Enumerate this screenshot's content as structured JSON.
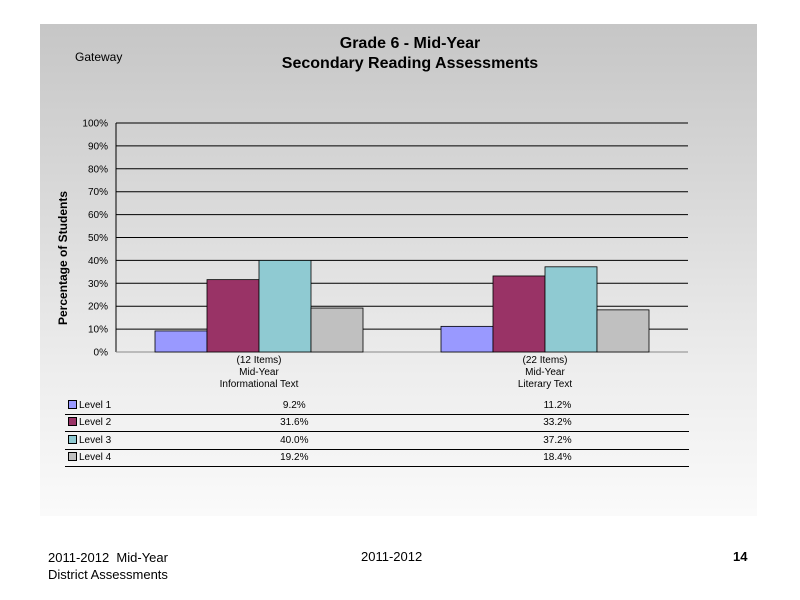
{
  "header": {
    "school": "Gateway",
    "title_line1": "Grade 6 - Mid-Year",
    "title_line2": "Secondary Reading Assessments"
  },
  "chart_data": {
    "type": "bar",
    "ylabel": "Percentage of Students",
    "ylim": [
      0,
      100
    ],
    "yticks": [
      "0%",
      "10%",
      "20%",
      "30%",
      "40%",
      "50%",
      "60%",
      "70%",
      "80%",
      "90%",
      "100%"
    ],
    "grid": true,
    "categories": [
      {
        "lines": [
          "(12 Items)",
          "Mid-Year",
          "Informational Text"
        ]
      },
      {
        "lines": [
          "(22 Items)",
          "Mid-Year",
          "Literary Text"
        ]
      }
    ],
    "series": [
      {
        "name": "Level 1",
        "color": "#9999ff",
        "values": [
          9.2,
          11.2
        ],
        "labels": [
          "9.2%",
          "11.2%"
        ]
      },
      {
        "name": "Level 2",
        "color": "#993366",
        "values": [
          31.6,
          33.2
        ],
        "labels": [
          "31.6%",
          "33.2%"
        ]
      },
      {
        "name": "Level 3",
        "color": "#8fcad2",
        "values": [
          40.0,
          37.2
        ],
        "labels": [
          "40.0%",
          "37.2%"
        ]
      },
      {
        "name": "Level 4",
        "color": "#c0c0c0",
        "values": [
          19.2,
          18.4
        ],
        "labels": [
          "19.2%",
          "18.4%"
        ]
      }
    ]
  },
  "footer": {
    "left_line1": "2011-2012  Mid-Year",
    "left_line2": "District Assessments",
    "center": "2011-2012",
    "page_number": "14"
  }
}
